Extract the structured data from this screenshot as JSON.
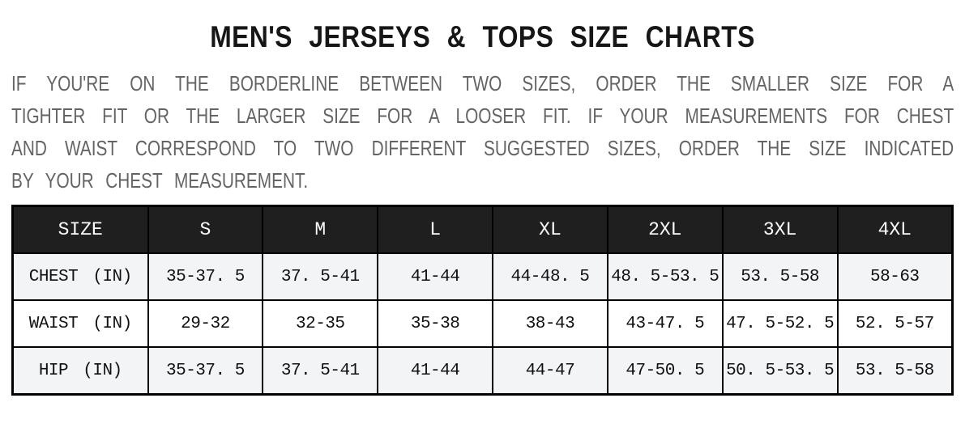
{
  "page": {
    "title": "MEN'S JERSEYS & TOPS SIZE CHARTS",
    "intro_lines": [
      "IF YOU'RE ON THE BORDERLINE BETWEEN TWO SIZES, ORDER THE SMALLER SIZE FOR A",
      "TIGHTER FIT OR THE LARGER SIZE FOR A LOOSER FIT. IF YOUR MEASUREMENTS FOR CHEST",
      "AND WAIST CORRESPOND TO TWO DIFFERENT SUGGESTED SIZES, ORDER THE SIZE INDICATED",
      "BY YOUR CHEST MEASUREMENT."
    ]
  },
  "size_chart": {
    "columns": [
      "SIZE",
      "S",
      "M",
      "L",
      "XL",
      "2XL",
      "3XL",
      "4XL"
    ],
    "rows": [
      {
        "label": "CHEST (IN)",
        "values": [
          "35-37. 5",
          "37. 5-41",
          "41-44",
          "44-48. 5",
          "48. 5-53. 5",
          "53. 5-58",
          "58-63"
        ]
      },
      {
        "label": "WAIST (IN)",
        "values": [
          "29-32",
          "32-35",
          "35-38",
          "38-43",
          "43-47. 5",
          "47. 5-52. 5",
          "52. 5-57"
        ]
      },
      {
        "label": "HIP (IN)",
        "values": [
          "35-37. 5",
          "37. 5-41",
          "41-44",
          "44-47",
          "47-50. 5",
          "50. 5-53. 5",
          "53. 5-58"
        ]
      }
    ]
  },
  "colors": {
    "header_bg": "#1f1f1f",
    "header_text": "#fdfdfd",
    "stripe_row_bg": "#f3f4f6",
    "plain_row_bg": "#ffffff",
    "table_border": "#000000",
    "title_text": "#161616",
    "intro_text": "#636466"
  }
}
